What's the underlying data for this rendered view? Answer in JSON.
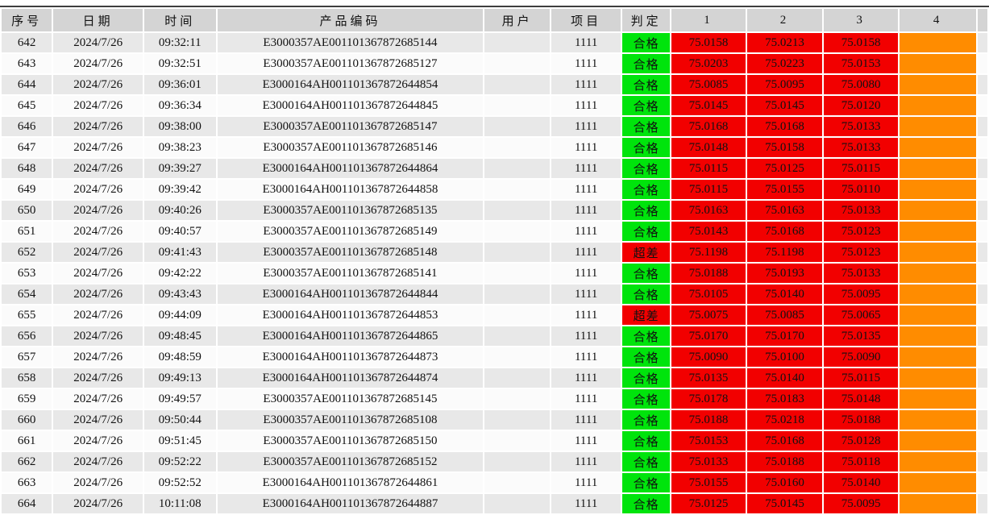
{
  "colors": {
    "pass_green": "#00e40c",
    "fail_red": "#f20000",
    "value_cell_red": "#f20000",
    "empty_cell_orange": "#ff8c00",
    "header_gray": "#d4d4d4",
    "row_gray": "#e8e8e8",
    "row_white": "#fbfbfb",
    "top_border": "#3f3f3f"
  },
  "table": {
    "judgment": {
      "pass": "合格",
      "fail": "超差"
    },
    "columns": [
      {
        "key": "seq",
        "label": "序号",
        "type": "plain"
      },
      {
        "key": "date",
        "label": "日期",
        "type": "plain"
      },
      {
        "key": "time",
        "label": "时间",
        "type": "plain"
      },
      {
        "key": "code",
        "label": "产品编码",
        "type": "plain"
      },
      {
        "key": "user",
        "label": "用户",
        "type": "plain"
      },
      {
        "key": "project",
        "label": "项目",
        "type": "plain"
      },
      {
        "key": "judge",
        "label": "判定",
        "type": "judge"
      },
      {
        "key": "v1",
        "label": "1",
        "type": "value"
      },
      {
        "key": "v2",
        "label": "2",
        "type": "value"
      },
      {
        "key": "v3",
        "label": "3",
        "type": "value"
      },
      {
        "key": "v4",
        "label": "4",
        "type": "orange"
      },
      {
        "key": "extra",
        "label": "",
        "type": "plain"
      }
    ],
    "rows": [
      {
        "seq": "642",
        "date": "2024/7/26",
        "time": "09:32:11",
        "code": "E3000357AE001101367872685144",
        "user": "",
        "project": "1111",
        "judge": "pass",
        "v1": "75.0158",
        "v2": "75.0213",
        "v3": "75.0158",
        "v4": "",
        "extra": ""
      },
      {
        "seq": "643",
        "date": "2024/7/26",
        "time": "09:32:51",
        "code": "E3000357AE001101367872685127",
        "user": "",
        "project": "1111",
        "judge": "pass",
        "v1": "75.0203",
        "v2": "75.0223",
        "v3": "75.0153",
        "v4": "",
        "extra": ""
      },
      {
        "seq": "644",
        "date": "2024/7/26",
        "time": "09:36:01",
        "code": "E3000164AH001101367872644854",
        "user": "",
        "project": "1111",
        "judge": "pass",
        "v1": "75.0085",
        "v2": "75.0095",
        "v3": "75.0080",
        "v4": "",
        "extra": ""
      },
      {
        "seq": "645",
        "date": "2024/7/26",
        "time": "09:36:34",
        "code": "E3000164AH001101367872644845",
        "user": "",
        "project": "1111",
        "judge": "pass",
        "v1": "75.0145",
        "v2": "75.0145",
        "v3": "75.0120",
        "v4": "",
        "extra": ""
      },
      {
        "seq": "646",
        "date": "2024/7/26",
        "time": "09:38:00",
        "code": "E3000357AE001101367872685147",
        "user": "",
        "project": "1111",
        "judge": "pass",
        "v1": "75.0168",
        "v2": "75.0168",
        "v3": "75.0133",
        "v4": "",
        "extra": ""
      },
      {
        "seq": "647",
        "date": "2024/7/26",
        "time": "09:38:23",
        "code": "E3000357AE001101367872685146",
        "user": "",
        "project": "1111",
        "judge": "pass",
        "v1": "75.0148",
        "v2": "75.0158",
        "v3": "75.0133",
        "v4": "",
        "extra": ""
      },
      {
        "seq": "648",
        "date": "2024/7/26",
        "time": "09:39:27",
        "code": "E3000164AH001101367872644864",
        "user": "",
        "project": "1111",
        "judge": "pass",
        "v1": "75.0115",
        "v2": "75.0125",
        "v3": "75.0115",
        "v4": "",
        "extra": ""
      },
      {
        "seq": "649",
        "date": "2024/7/26",
        "time": "09:39:42",
        "code": "E3000164AH001101367872644858",
        "user": "",
        "project": "1111",
        "judge": "pass",
        "v1": "75.0115",
        "v2": "75.0155",
        "v3": "75.0110",
        "v4": "",
        "extra": ""
      },
      {
        "seq": "650",
        "date": "2024/7/26",
        "time": "09:40:26",
        "code": "E3000357AE001101367872685135",
        "user": "",
        "project": "1111",
        "judge": "pass",
        "v1": "75.0163",
        "v2": "75.0163",
        "v3": "75.0133",
        "v4": "",
        "extra": ""
      },
      {
        "seq": "651",
        "date": "2024/7/26",
        "time": "09:40:57",
        "code": "E3000357AE001101367872685149",
        "user": "",
        "project": "1111",
        "judge": "pass",
        "v1": "75.0143",
        "v2": "75.0168",
        "v3": "75.0123",
        "v4": "",
        "extra": ""
      },
      {
        "seq": "652",
        "date": "2024/7/26",
        "time": "09:41:43",
        "code": "E3000357AE001101367872685148",
        "user": "",
        "project": "1111",
        "judge": "fail",
        "v1": "75.1198",
        "v2": "75.1198",
        "v3": "75.0123",
        "v4": "",
        "extra": ""
      },
      {
        "seq": "653",
        "date": "2024/7/26",
        "time": "09:42:22",
        "code": "E3000357AE001101367872685141",
        "user": "",
        "project": "1111",
        "judge": "pass",
        "v1": "75.0188",
        "v2": "75.0193",
        "v3": "75.0133",
        "v4": "",
        "extra": ""
      },
      {
        "seq": "654",
        "date": "2024/7/26",
        "time": "09:43:43",
        "code": "E3000164AH001101367872644844",
        "user": "",
        "project": "1111",
        "judge": "pass",
        "v1": "75.0105",
        "v2": "75.0140",
        "v3": "75.0095",
        "v4": "",
        "extra": ""
      },
      {
        "seq": "655",
        "date": "2024/7/26",
        "time": "09:44:09",
        "code": "E3000164AH001101367872644853",
        "user": "",
        "project": "1111",
        "judge": "fail",
        "v1": "75.0075",
        "v2": "75.0085",
        "v3": "75.0065",
        "v4": "",
        "extra": ""
      },
      {
        "seq": "656",
        "date": "2024/7/26",
        "time": "09:48:45",
        "code": "E3000164AH001101367872644865",
        "user": "",
        "project": "1111",
        "judge": "pass",
        "v1": "75.0170",
        "v2": "75.0170",
        "v3": "75.0135",
        "v4": "",
        "extra": ""
      },
      {
        "seq": "657",
        "date": "2024/7/26",
        "time": "09:48:59",
        "code": "E3000164AH001101367872644873",
        "user": "",
        "project": "1111",
        "judge": "pass",
        "v1": "75.0090",
        "v2": "75.0100",
        "v3": "75.0090",
        "v4": "",
        "extra": ""
      },
      {
        "seq": "658",
        "date": "2024/7/26",
        "time": "09:49:13",
        "code": "E3000164AH001101367872644874",
        "user": "",
        "project": "1111",
        "judge": "pass",
        "v1": "75.0135",
        "v2": "75.0140",
        "v3": "75.0115",
        "v4": "",
        "extra": ""
      },
      {
        "seq": "659",
        "date": "2024/7/26",
        "time": "09:49:57",
        "code": "E3000357AE001101367872685145",
        "user": "",
        "project": "1111",
        "judge": "pass",
        "v1": "75.0178",
        "v2": "75.0183",
        "v3": "75.0148",
        "v4": "",
        "extra": ""
      },
      {
        "seq": "660",
        "date": "2024/7/26",
        "time": "09:50:44",
        "code": "E3000357AE001101367872685108",
        "user": "",
        "project": "1111",
        "judge": "pass",
        "v1": "75.0188",
        "v2": "75.0218",
        "v3": "75.0188",
        "v4": "",
        "extra": ""
      },
      {
        "seq": "661",
        "date": "2024/7/26",
        "time": "09:51:45",
        "code": "E3000357AE001101367872685150",
        "user": "",
        "project": "1111",
        "judge": "pass",
        "v1": "75.0153",
        "v2": "75.0168",
        "v3": "75.0128",
        "v4": "",
        "extra": ""
      },
      {
        "seq": "662",
        "date": "2024/7/26",
        "time": "09:52:22",
        "code": "E3000357AE001101367872685152",
        "user": "",
        "project": "1111",
        "judge": "pass",
        "v1": "75.0133",
        "v2": "75.0188",
        "v3": "75.0118",
        "v4": "",
        "extra": ""
      },
      {
        "seq": "663",
        "date": "2024/7/26",
        "time": "09:52:52",
        "code": "E3000164AH001101367872644861",
        "user": "",
        "project": "1111",
        "judge": "pass",
        "v1": "75.0155",
        "v2": "75.0160",
        "v3": "75.0140",
        "v4": "",
        "extra": ""
      },
      {
        "seq": "664",
        "date": "2024/7/26",
        "time": "10:11:08",
        "code": "E3000164AH001101367872644887",
        "user": "",
        "project": "1111",
        "judge": "pass",
        "v1": "75.0125",
        "v2": "75.0145",
        "v3": "75.0095",
        "v4": "",
        "extra": ""
      }
    ]
  }
}
